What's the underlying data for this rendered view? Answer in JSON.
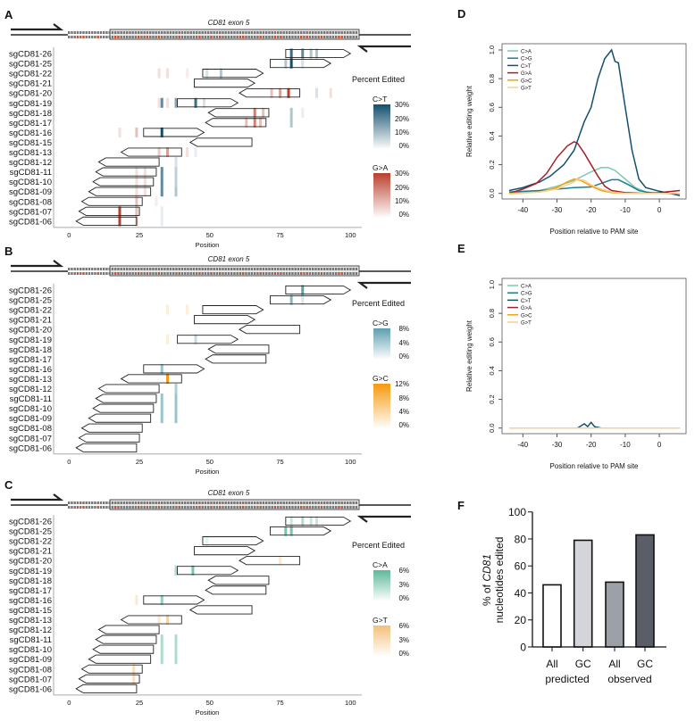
{
  "panels": [
    {
      "label": "A",
      "exon_title": "CD81 exon 5",
      "xlabel": "Position",
      "xticks": [
        0,
        25,
        50,
        75,
        100
      ],
      "legend_title": "Percent Edited",
      "scales": [
        {
          "name": "C>T",
          "color": "#14506e",
          "ticks": [
            "30%",
            "20%",
            "10%",
            "0%"
          ],
          "max": 30
        },
        {
          "name": "G>A",
          "color": "#b8412c",
          "ticks": [
            "30%",
            "20%",
            "10%",
            "0%"
          ],
          "max": 30
        }
      ],
      "guides": [
        "sgCD81-26",
        "sgCD81-25",
        "sgCD81-22",
        "sgCD81-21",
        "sgCD81-20",
        "sgCD81-19",
        "sgCD81-18",
        "sgCD81-17",
        "sgCD81-16",
        "sgCD81-15",
        "sgCD81-13",
        "sgCD81-12",
        "sgCD81-11",
        "sgCD81-10",
        "sgCD81-09",
        "sgCD81-08",
        "sgCD81-07",
        "sgCD81-06"
      ],
      "edits": [
        [
          "sgCD81-26",
          0,
          79,
          25
        ],
        [
          "sgCD81-26",
          0,
          83,
          20
        ],
        [
          "sgCD81-26",
          0,
          86,
          10
        ],
        [
          "sgCD81-26",
          0,
          88,
          10
        ],
        [
          "sgCD81-25",
          0,
          77,
          10
        ],
        [
          "sgCD81-25",
          0,
          79,
          30
        ],
        [
          "sgCD81-25",
          0,
          83,
          5
        ],
        [
          "sgCD81-22",
          0,
          49,
          5
        ],
        [
          "sgCD81-22",
          0,
          54,
          10
        ],
        [
          "sgCD81-22",
          1,
          32,
          5
        ],
        [
          "sgCD81-22",
          1,
          35,
          5
        ],
        [
          "sgCD81-22",
          1,
          42,
          3
        ],
        [
          "sgCD81-20",
          1,
          72,
          10
        ],
        [
          "sgCD81-20",
          1,
          75,
          15
        ],
        [
          "sgCD81-20",
          1,
          78,
          30
        ],
        [
          "sgCD81-20",
          1,
          93,
          5
        ],
        [
          "sgCD81-20",
          0,
          88,
          5
        ],
        [
          "sgCD81-19",
          0,
          33,
          20
        ],
        [
          "sgCD81-19",
          0,
          38,
          15
        ],
        [
          "sgCD81-19",
          0,
          45,
          25
        ],
        [
          "sgCD81-19",
          0,
          48,
          5
        ],
        [
          "sgCD81-19",
          1,
          32,
          5
        ],
        [
          "sgCD81-19",
          1,
          35,
          5
        ],
        [
          "sgCD81-18",
          1,
          66,
          20
        ],
        [
          "sgCD81-18",
          1,
          69,
          10
        ],
        [
          "sgCD81-18",
          0,
          79,
          10
        ],
        [
          "sgCD81-18",
          0,
          83,
          3
        ],
        [
          "sgCD81-17",
          1,
          63,
          10
        ],
        [
          "sgCD81-17",
          1,
          66,
          20
        ],
        [
          "sgCD81-17",
          1,
          68,
          10
        ],
        [
          "sgCD81-17",
          0,
          79,
          10
        ],
        [
          "sgCD81-16",
          0,
          33,
          30
        ],
        [
          "sgCD81-16",
          1,
          18,
          5
        ],
        [
          "sgCD81-16",
          1,
          24,
          10
        ],
        [
          "sgCD81-13",
          1,
          32,
          8
        ],
        [
          "sgCD81-13",
          1,
          35,
          15
        ],
        [
          "sgCD81-13",
          1,
          42,
          5
        ],
        [
          "sgCD81-13",
          0,
          45,
          3
        ],
        [
          "sgCD81-12",
          0,
          38,
          5
        ],
        [
          "sgCD81-11",
          0,
          33,
          20
        ],
        [
          "sgCD81-11",
          0,
          38,
          8
        ],
        [
          "sgCD81-11",
          1,
          24,
          5
        ],
        [
          "sgCD81-11",
          1,
          27,
          5
        ],
        [
          "sgCD81-10",
          0,
          33,
          20
        ],
        [
          "sgCD81-10",
          0,
          38,
          8
        ],
        [
          "sgCD81-10",
          1,
          24,
          5
        ],
        [
          "sgCD81-10",
          1,
          27,
          5
        ],
        [
          "sgCD81-09",
          0,
          33,
          20
        ],
        [
          "sgCD81-09",
          0,
          38,
          10
        ],
        [
          "sgCD81-09",
          1,
          24,
          5
        ],
        [
          "sgCD81-09",
          1,
          27,
          5
        ],
        [
          "sgCD81-08",
          1,
          24,
          10
        ],
        [
          "sgCD81-08",
          1,
          31,
          3
        ],
        [
          "sgCD81-07",
          1,
          18,
          30
        ],
        [
          "sgCD81-07",
          1,
          24,
          10
        ],
        [
          "sgCD81-07",
          0,
          33,
          3
        ],
        [
          "sgCD81-06",
          1,
          18,
          30
        ],
        [
          "sgCD81-06",
          1,
          24,
          10
        ],
        [
          "sgCD81-06",
          0,
          33,
          3
        ]
      ]
    },
    {
      "label": "B",
      "exon_title": "CD81 exon 5",
      "xlabel": "Position",
      "xticks": [
        0,
        25,
        50,
        75,
        100
      ],
      "legend_title": "Percent Edited",
      "scales": [
        {
          "name": "C>G",
          "color": "#5e9fb0",
          "ticks": [
            "8%",
            "4%",
            "0%"
          ],
          "max": 8
        },
        {
          "name": "G>C",
          "color": "#f59a0c",
          "ticks": [
            "12%",
            "8%",
            "4%",
            "0%"
          ],
          "max": 12
        }
      ],
      "guides": [
        "sgCD81-26",
        "sgCD81-25",
        "sgCD81-22",
        "sgCD81-21",
        "sgCD81-20",
        "sgCD81-19",
        "sgCD81-18",
        "sgCD81-17",
        "sgCD81-16",
        "sgCD81-13",
        "sgCD81-12",
        "sgCD81-11",
        "sgCD81-10",
        "sgCD81-09",
        "sgCD81-08",
        "sgCD81-07",
        "sgCD81-06"
      ],
      "edits": [
        [
          "sgCD81-26",
          0,
          83,
          8
        ],
        [
          "sgCD81-25",
          0,
          79,
          6
        ],
        [
          "sgCD81-25",
          0,
          83,
          2
        ],
        [
          "sgCD81-22",
          1,
          35,
          2
        ],
        [
          "sgCD81-22",
          1,
          42,
          2
        ],
        [
          "sgCD81-19",
          0,
          45,
          3
        ],
        [
          "sgCD81-19",
          1,
          35,
          2
        ],
        [
          "sgCD81-16",
          0,
          33,
          5
        ],
        [
          "sgCD81-13",
          1,
          35,
          12
        ],
        [
          "sgCD81-12",
          0,
          38,
          4
        ],
        [
          "sgCD81-11",
          0,
          33,
          5
        ],
        [
          "sgCD81-11",
          0,
          38,
          5
        ],
        [
          "sgCD81-10",
          0,
          33,
          5
        ],
        [
          "sgCD81-10",
          0,
          38,
          5
        ],
        [
          "sgCD81-09",
          0,
          33,
          5
        ],
        [
          "sgCD81-09",
          0,
          38,
          5
        ]
      ]
    },
    {
      "label": "C",
      "exon_title": "CD81 exon 5",
      "xlabel": "Position",
      "xticks": [
        0,
        25,
        50,
        75,
        100
      ],
      "legend_title": "Percent Edited",
      "scales": [
        {
          "name": "C>A",
          "color": "#5fb89a",
          "ticks": [
            "6%",
            "3%",
            "0%"
          ],
          "max": 6
        },
        {
          "name": "G>T",
          "color": "#f2c07c",
          "ticks": [
            "6%",
            "3%",
            "0%"
          ],
          "max": 6
        }
      ],
      "guides": [
        "sgCD81-26",
        "sgCD81-25",
        "sgCD81-22",
        "sgCD81-21",
        "sgCD81-20",
        "sgCD81-19",
        "sgCD81-18",
        "sgCD81-17",
        "sgCD81-16",
        "sgCD81-15",
        "sgCD81-13",
        "sgCD81-12",
        "sgCD81-11",
        "sgCD81-10",
        "sgCD81-09",
        "sgCD81-08",
        "sgCD81-07",
        "sgCD81-06"
      ],
      "edits": [
        [
          "sgCD81-26",
          0,
          79,
          2
        ],
        [
          "sgCD81-26",
          0,
          83,
          3
        ],
        [
          "sgCD81-26",
          0,
          86,
          2
        ],
        [
          "sgCD81-26",
          0,
          88,
          2
        ],
        [
          "sgCD81-25",
          0,
          77,
          5
        ],
        [
          "sgCD81-25",
          0,
          79,
          5
        ],
        [
          "sgCD81-22",
          0,
          49,
          1
        ],
        [
          "sgCD81-20",
          1,
          75,
          2
        ],
        [
          "sgCD81-19",
          0,
          38,
          3
        ],
        [
          "sgCD81-19",
          0,
          44,
          5
        ],
        [
          "sgCD81-16",
          0,
          33,
          4
        ],
        [
          "sgCD81-16",
          1,
          24,
          2
        ],
        [
          "sgCD81-13",
          1,
          32,
          2
        ],
        [
          "sgCD81-13",
          1,
          35,
          4
        ],
        [
          "sgCD81-11",
          0,
          33,
          3
        ],
        [
          "sgCD81-11",
          0,
          38,
          3
        ],
        [
          "sgCD81-10",
          0,
          33,
          3
        ],
        [
          "sgCD81-10",
          0,
          38,
          3
        ],
        [
          "sgCD81-09",
          0,
          33,
          3
        ],
        [
          "sgCD81-09",
          0,
          38,
          3
        ],
        [
          "sgCD81-08",
          1,
          23,
          3
        ],
        [
          "sgCD81-07",
          1,
          23,
          3
        ]
      ]
    }
  ],
  "guide_spans": {
    "sgCD81-26": [
      77,
      100,
      "right"
    ],
    "sgCD81-25": [
      71.5,
      93,
      "right"
    ],
    "sgCD81-22": [
      47.5,
      69,
      "right"
    ],
    "sgCD81-21": [
      44.5,
      66,
      "right"
    ],
    "sgCD81-20": [
      60.5,
      82,
      "left"
    ],
    "sgCD81-19": [
      38.5,
      60,
      "right"
    ],
    "sgCD81-18": [
      49.5,
      71,
      "left"
    ],
    "sgCD81-17": [
      48.5,
      70,
      "left"
    ],
    "sgCD81-16": [
      26.5,
      48,
      "right"
    ],
    "sgCD81-15": [
      43,
      65,
      "left"
    ],
    "sgCD81-13": [
      18.5,
      40,
      "left"
    ],
    "sgCD81-12": [
      10.5,
      32,
      "left"
    ],
    "sgCD81-11": [
      9.5,
      31,
      "left"
    ],
    "sgCD81-10": [
      8.5,
      30,
      "left"
    ],
    "sgCD81-09": [
      7,
      29,
      "left"
    ],
    "sgCD81-08": [
      4.5,
      26,
      "left"
    ],
    "sgCD81-07": [
      3.5,
      25,
      "left"
    ],
    "sgCD81-06": [
      2.5,
      24,
      "left"
    ]
  },
  "grey_guides": [
    "sgCD81-21",
    "sgCD81-17",
    "sgCD81-15",
    "sgCD81-12"
  ],
  "chart_data": [
    {
      "panel": "D",
      "type": "line",
      "xlabel": "Position relative to PAM site",
      "ylabel": "Relative editing weight",
      "xlim": [
        -44,
        6
      ],
      "ylim": [
        0,
        1
      ],
      "xticks": [
        -40,
        -30,
        -20,
        -10,
        0
      ],
      "yticks": [
        "0.0",
        "0.2",
        "0.4",
        "0.6",
        "0.8",
        "1.0"
      ],
      "legend": "top-left",
      "series": [
        {
          "name": "C>A",
          "color": "#7ec8b0",
          "x": [
            -44,
            -35,
            -30,
            -25,
            -20,
            -17,
            -15,
            -13,
            -10,
            -7,
            -4,
            0,
            6
          ],
          "y": [
            0,
            0.02,
            0.05,
            0.09,
            0.15,
            0.18,
            0.18,
            0.16,
            0.1,
            0.04,
            0.01,
            0,
            -0.005
          ]
        },
        {
          "name": "C>G",
          "color": "#1f7c96",
          "x": [
            -44,
            -35,
            -25,
            -20,
            -17,
            -14,
            -12,
            -9,
            -6,
            -3,
            0,
            6
          ],
          "y": [
            0.01,
            0.02,
            0.04,
            0.045,
            0.07,
            0.095,
            0.095,
            0.06,
            0.02,
            0.005,
            0,
            0
          ]
        },
        {
          "name": "C>T",
          "color": "#14506e",
          "x": [
            -44,
            -40,
            -35,
            -32,
            -28,
            -25,
            -22,
            -20,
            -18,
            -17,
            -16,
            -14,
            -13,
            -12,
            -10,
            -8,
            -6,
            -4,
            0,
            6
          ],
          "y": [
            0.02,
            0.04,
            0.08,
            0.12,
            0.2,
            0.3,
            0.5,
            0.6,
            0.8,
            0.87,
            0.94,
            1.0,
            0.92,
            0.91,
            0.6,
            0.3,
            0.1,
            0.04,
            0.015,
            -0.015
          ]
        },
        {
          "name": "G>A",
          "color": "#a3202a",
          "x": [
            -44,
            -40,
            -36,
            -33,
            -30,
            -27,
            -25,
            -24,
            -22,
            -20,
            -18,
            -16,
            -14,
            -10,
            -4,
            0,
            6
          ],
          "y": [
            0,
            0.03,
            0.07,
            0.14,
            0.25,
            0.33,
            0.36,
            0.35,
            0.28,
            0.2,
            0.12,
            0.05,
            0.02,
            0.005,
            0,
            0.005,
            0.02
          ]
        },
        {
          "name": "G>C",
          "color": "#f2a20f",
          "x": [
            -44,
            -35,
            -30,
            -27,
            -25,
            -23,
            -20,
            -17,
            -14,
            -10,
            6
          ],
          "y": [
            0,
            0.01,
            0.04,
            0.08,
            0.1,
            0.09,
            0.05,
            0.02,
            0.005,
            0,
            0
          ]
        },
        {
          "name": "G>T",
          "color": "#f5cf94",
          "x": [
            -44,
            -35,
            -30,
            -25,
            -24,
            -22,
            -20,
            -17,
            -14,
            -10,
            6
          ],
          "y": [
            -0.005,
            0.01,
            0.03,
            0.08,
            0.1,
            0.09,
            0.06,
            0.03,
            0.01,
            0,
            0
          ]
        }
      ]
    },
    {
      "panel": "E",
      "type": "line",
      "xlabel": "Position relative to PAM site",
      "ylabel": "Relative editing weight",
      "xlim": [
        -44,
        6
      ],
      "ylim": [
        0,
        1
      ],
      "xticks": [
        -40,
        -30,
        -20,
        -10,
        0
      ],
      "yticks": [
        "0.0",
        "0.2",
        "0.4",
        "0.6",
        "0.8",
        "1.0"
      ],
      "legend": "top-left",
      "series": [
        {
          "name": "C>A",
          "color": "#7ec8b0",
          "x": [
            -44,
            6
          ],
          "y": [
            0,
            0
          ]
        },
        {
          "name": "C>G",
          "color": "#1f7c96",
          "x": [
            -44,
            6
          ],
          "y": [
            0,
            0
          ]
        },
        {
          "name": "C>T",
          "color": "#14506e",
          "x": [
            -44,
            -24,
            -22,
            -21,
            -20,
            -19,
            -17,
            6
          ],
          "y": [
            0,
            0,
            0.03,
            0.01,
            0.04,
            0.01,
            0,
            0
          ]
        },
        {
          "name": "G>A",
          "color": "#a3202a",
          "x": [
            -44,
            6
          ],
          "y": [
            0,
            0
          ]
        },
        {
          "name": "G>C",
          "color": "#f2a20f",
          "x": [
            -44,
            6
          ],
          "y": [
            0,
            0
          ]
        },
        {
          "name": "G>T",
          "color": "#f5cf94",
          "x": [
            -44,
            6
          ],
          "y": [
            0,
            0
          ]
        }
      ]
    },
    {
      "panel": "F",
      "type": "bar",
      "ylabel_parts": [
        "% of ",
        "CD81",
        "nucleotides edited"
      ],
      "ylim": [
        0,
        100
      ],
      "yticks": [
        "0",
        "20",
        "40",
        "60",
        "80",
        "100"
      ],
      "categories": [
        "All",
        "GC",
        "All",
        "GC"
      ],
      "groups": [
        "predicted",
        "observed"
      ],
      "values": [
        46,
        79,
        48,
        83
      ],
      "colors": [
        "#ffffff",
        "#d3d5db",
        "#9ca0a7",
        "#5a5e66"
      ]
    }
  ]
}
